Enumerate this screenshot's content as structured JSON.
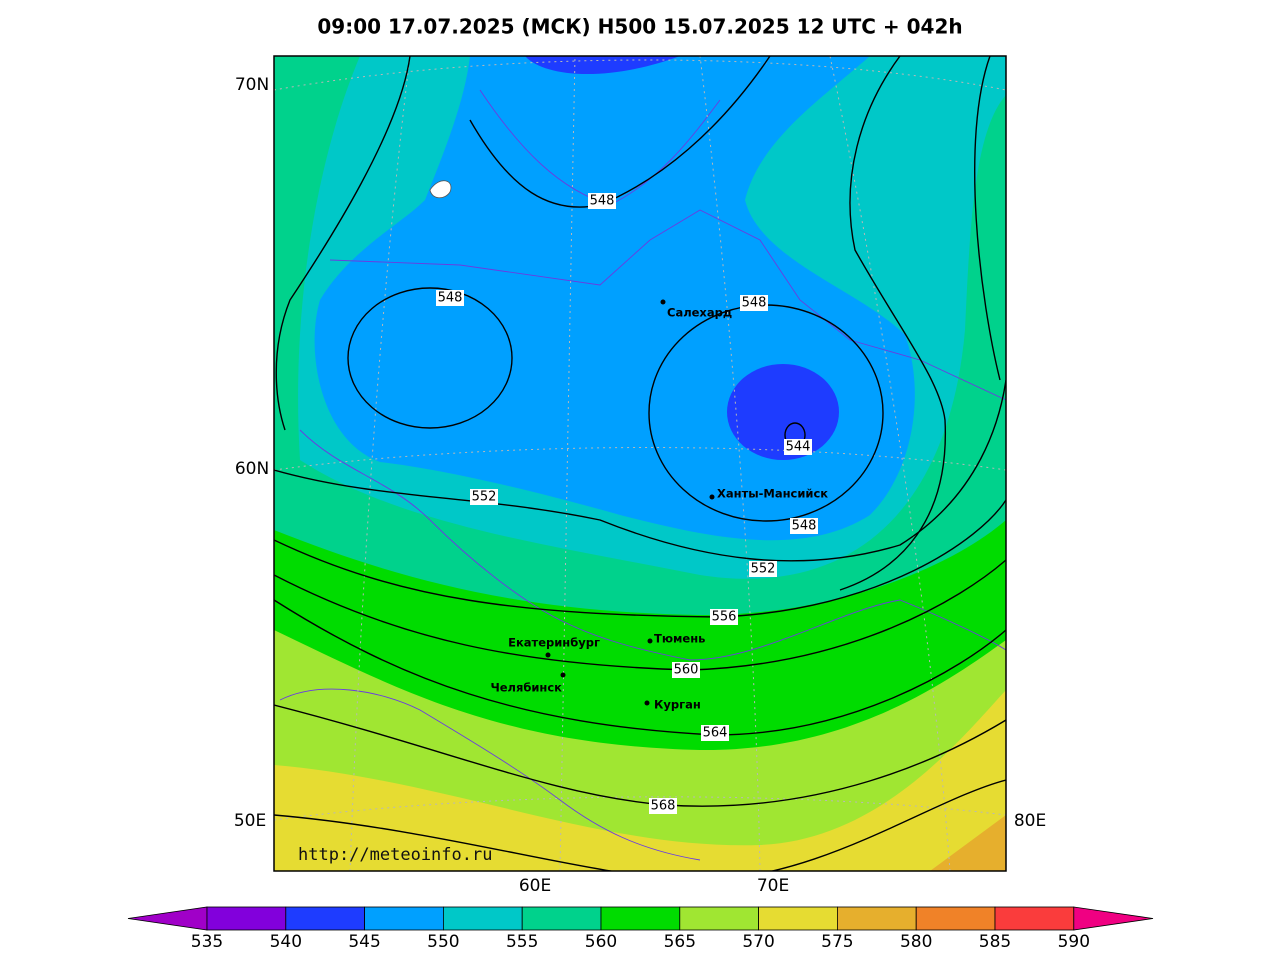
{
  "title": "09:00 17.07.2025 (МСК) H500  15.07.2025 12 UTC + 042h",
  "axis_labels": {
    "left": [
      "70N",
      "60N",
      "50E"
    ],
    "right": [
      "80E"
    ],
    "bottom": [
      "60E",
      "70E"
    ]
  },
  "contour_labels": [
    "548",
    "548",
    "548",
    "544",
    "552",
    "548",
    "552",
    "556",
    "560",
    "564",
    "568"
  ],
  "cities": [
    "Салехард",
    "Ханты-Мансийск",
    "Тюмень",
    "Екатеринбург",
    "Челябинск",
    "Курган"
  ],
  "url": "http://meteoinfo.ru",
  "colorbar": {
    "ticks": [
      535,
      540,
      545,
      550,
      555,
      560,
      565,
      570,
      575,
      580,
      585,
      590
    ],
    "colors": [
      "#a000c8",
      "#8200dc",
      "#1e3cff",
      "#00a0ff",
      "#00c8c8",
      "#00d28c",
      "#00dc00",
      "#a0e632",
      "#e6dc32",
      "#e6af2d",
      "#f08228",
      "#fa3c3c",
      "#f00082"
    ]
  }
}
